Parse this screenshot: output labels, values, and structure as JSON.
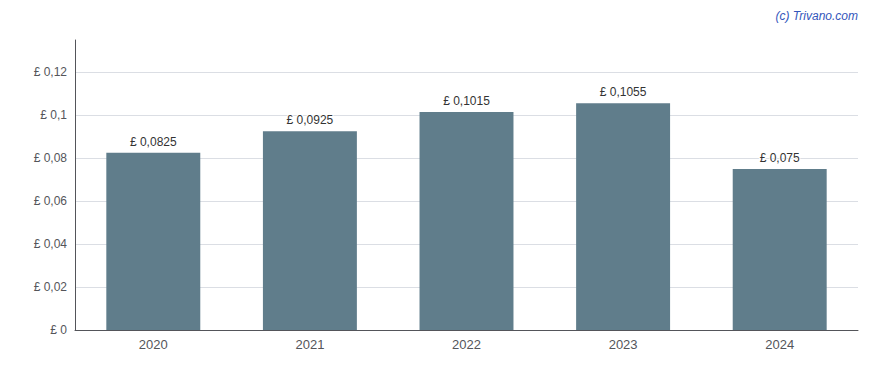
{
  "chart_data": {
    "type": "bar",
    "categories": [
      "2020",
      "2021",
      "2022",
      "2023",
      "2024"
    ],
    "values": [
      0.0825,
      0.0925,
      0.1015,
      0.1055,
      0.075
    ],
    "value_labels": [
      "£ 0,0825",
      "£ 0,0925",
      "£ 0,1015",
      "£ 0,1055",
      "£ 0,075"
    ],
    "data_labels": true,
    "color": "#607d8b",
    "ylim": [
      0,
      0.135
    ],
    "yticks": [
      {
        "value": 0,
        "label": "£ 0"
      },
      {
        "value": 0.02,
        "label": "£ 0,02"
      },
      {
        "value": 0.04,
        "label": "£ 0,04"
      },
      {
        "value": 0.06,
        "label": "£ 0,06"
      },
      {
        "value": 0.08,
        "label": "£ 0,08"
      },
      {
        "value": 0.1,
        "label": "£ 0,1"
      },
      {
        "value": 0.12,
        "label": "£ 0,12"
      }
    ],
    "grid": true,
    "annotations": [
      "(c) Trivano.com"
    ]
  }
}
